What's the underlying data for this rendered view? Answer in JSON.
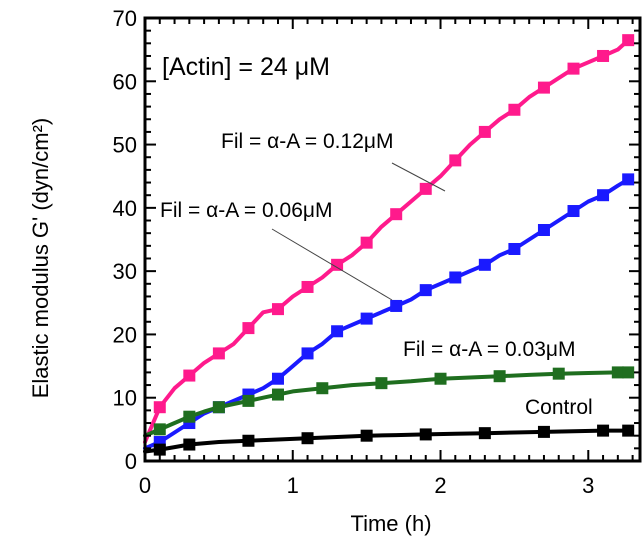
{
  "chart_data": {
    "type": "line",
    "title": "",
    "xlabel": "Time (h)",
    "ylabel": "Elastic modulus G' (dyn/cm²)",
    "xlim": [
      0,
      3.35
    ],
    "ylim": [
      0,
      70
    ],
    "x_ticks": [
      "0",
      "1",
      "2",
      "3"
    ],
    "y_ticks": [
      "0",
      "10",
      "20",
      "30",
      "40",
      "50",
      "60",
      "70"
    ],
    "grid": false,
    "annotations": {
      "concentration": "[Actin] = 24 μM",
      "label_012": "Fil = α-A = 0.12μM",
      "label_006": "Fil = α-A = 0.06μM",
      "label_003": "Fil = α-A = 0.03μM",
      "label_control": "Control"
    },
    "series": [
      {
        "name": "Fil = α-A = 0.12μM",
        "color": "#ff1a8c",
        "x": [
          0,
          0.1,
          0.2,
          0.3,
          0.4,
          0.5,
          0.6,
          0.7,
          0.8,
          0.9,
          1.0,
          1.1,
          1.2,
          1.3,
          1.4,
          1.5,
          1.6,
          1.7,
          1.8,
          1.9,
          2.0,
          2.1,
          2.2,
          2.3,
          2.4,
          2.5,
          2.6,
          2.7,
          2.8,
          2.9,
          3.0,
          3.1,
          3.2,
          3.27
        ],
        "y": [
          3,
          8.5,
          11.5,
          13.5,
          15.5,
          17,
          18.5,
          21,
          23.5,
          24,
          26,
          27.5,
          29,
          31,
          32.5,
          34.5,
          37,
          39,
          41,
          43,
          45,
          47.5,
          50,
          52,
          54,
          55.5,
          57.5,
          59,
          60.5,
          62,
          63,
          64,
          65,
          66.5
        ]
      },
      {
        "name": "Fil = α-A = 0.06μM",
        "color": "#1a1aff",
        "x": [
          0,
          0.1,
          0.2,
          0.3,
          0.4,
          0.5,
          0.6,
          0.7,
          0.8,
          0.9,
          1.0,
          1.1,
          1.2,
          1.3,
          1.4,
          1.5,
          1.6,
          1.7,
          1.8,
          1.9,
          2.0,
          2.1,
          2.2,
          2.3,
          2.4,
          2.5,
          2.6,
          2.7,
          2.8,
          2.9,
          3.0,
          3.1,
          3.2,
          3.27
        ],
        "y": [
          2,
          3,
          4.5,
          6,
          7.5,
          8.5,
          9.5,
          10.5,
          11.5,
          13,
          15,
          17,
          18.5,
          20.5,
          21.5,
          22.5,
          23.5,
          24.5,
          25.5,
          27,
          28,
          29,
          30,
          31,
          32.5,
          33.5,
          35,
          36.5,
          38,
          39.5,
          41,
          42,
          43.5,
          44.5
        ]
      },
      {
        "name": "Fil = α-A = 0.03μM",
        "color": "#1f6e1f",
        "x": [
          0,
          0.1,
          0.2,
          0.3,
          0.4,
          0.5,
          0.6,
          0.7,
          0.8,
          0.9,
          1.0,
          1.2,
          1.4,
          1.6,
          1.8,
          2.0,
          2.2,
          2.4,
          2.6,
          2.8,
          3.0,
          3.2,
          3.27
        ],
        "y": [
          4,
          5,
          6,
          7,
          7.8,
          8.5,
          9,
          9.5,
          10,
          10.5,
          11,
          11.5,
          12,
          12.3,
          12.6,
          13,
          13.2,
          13.4,
          13.6,
          13.8,
          13.9,
          14,
          14
        ]
      },
      {
        "name": "Control",
        "color": "#000000",
        "x": [
          0,
          0.1,
          0.2,
          0.3,
          0.5,
          0.7,
          0.9,
          1.1,
          1.3,
          1.5,
          1.7,
          1.9,
          2.1,
          2.3,
          2.5,
          2.7,
          2.9,
          3.1,
          3.27
        ],
        "y": [
          1.5,
          1.8,
          2.2,
          2.6,
          3,
          3.2,
          3.4,
          3.6,
          3.8,
          4,
          4.1,
          4.2,
          4.3,
          4.4,
          4.5,
          4.6,
          4.7,
          4.8,
          4.8
        ]
      }
    ]
  }
}
